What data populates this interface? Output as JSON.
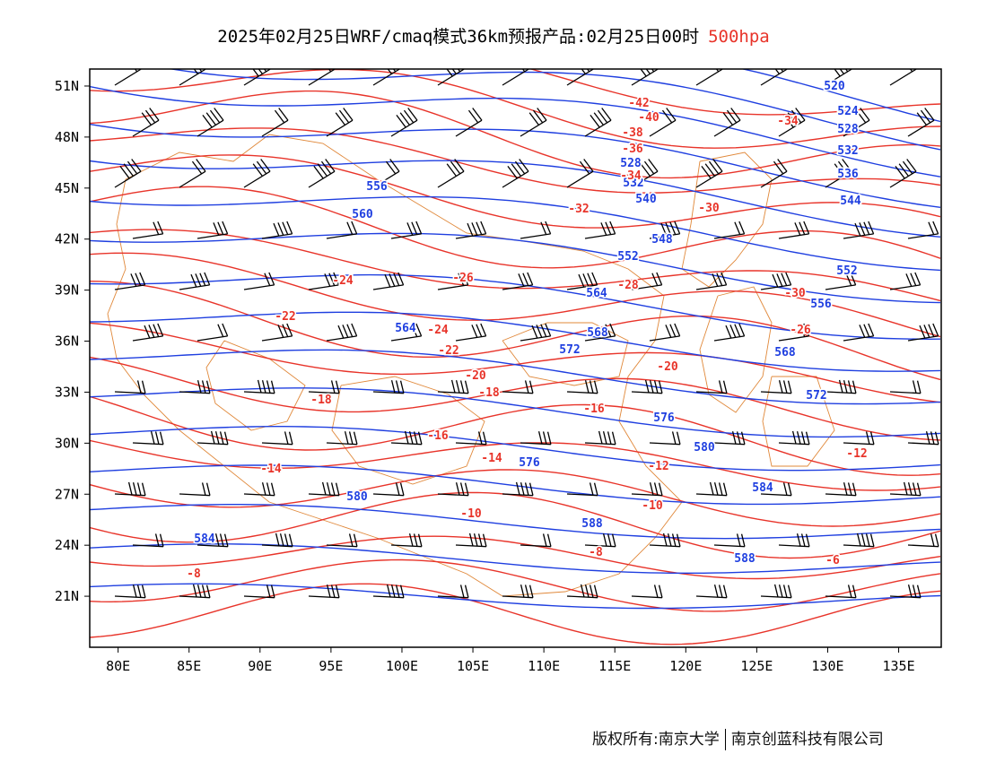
{
  "title": {
    "text": "2025年02月25日WRF/cmaq模式36km预报产品:02月25日00时",
    "level": "500hpa",
    "level_color": "#e8342a"
  },
  "axes": {
    "x_ticks": [
      "80E",
      "85E",
      "90E",
      "95E",
      "100E",
      "105E",
      "110E",
      "115E",
      "120E",
      "125E",
      "130E",
      "135E"
    ],
    "y_ticks": [
      "51N",
      "48N",
      "45N",
      "42N",
      "39N",
      "36N",
      "33N",
      "30N",
      "27N",
      "24N",
      "21N"
    ],
    "lon_range": [
      78,
      138
    ],
    "lat_range": [
      18,
      52
    ]
  },
  "colors": {
    "height_contour": "#1f3fe0",
    "temperature_contour": "#e8342a",
    "boundary": "#e0883a",
    "wind_barb": "#000000"
  },
  "height_labels": [
    "520",
    "524",
    "528",
    "528",
    "532",
    "532",
    "536",
    "540",
    "544",
    "548",
    "552",
    "552",
    "556",
    "556",
    "560",
    "564",
    "564",
    "568",
    "568",
    "572",
    "572",
    "576",
    "576",
    "580",
    "580",
    "584",
    "584",
    "588",
    "588"
  ],
  "temperature_labels": [
    "-42",
    "-40",
    "-38",
    "-36",
    "-34",
    "-34",
    "-32",
    "-30",
    "-30",
    "-28",
    "-26",
    "-26",
    "-24",
    "-24",
    "-22",
    "-22",
    "-20",
    "-20",
    "-18",
    "-18",
    "-16",
    "-16",
    "-14",
    "-14",
    "-12",
    "-12",
    "-10",
    "-10",
    "-8",
    "-8",
    "-6"
  ],
  "footer": {
    "copyright": "版权所有:南京大学",
    "company": "南京创蓝科技有限公司"
  }
}
